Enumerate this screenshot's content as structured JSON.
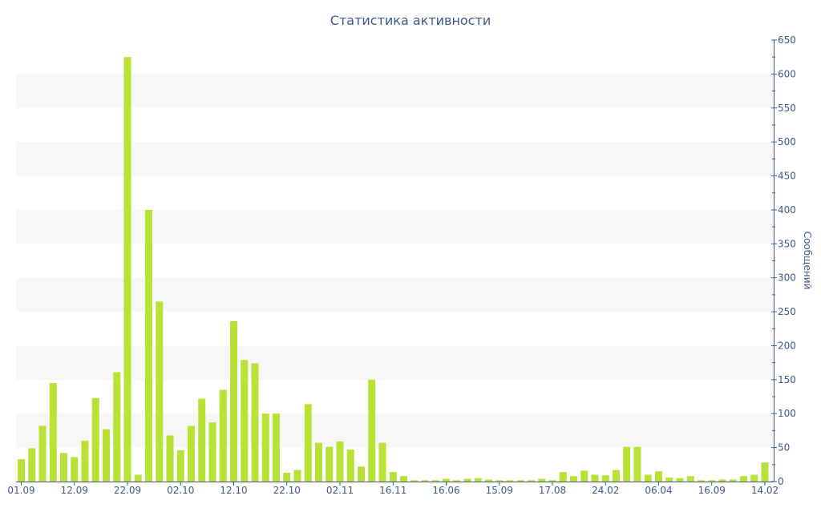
{
  "chart_data": {
    "type": "bar",
    "title": "Статистика активности",
    "ylabel": "Сообщений",
    "xlabel": "",
    "ylim": [
      0,
      650
    ],
    "y_ticks": [
      0,
      50,
      100,
      150,
      200,
      250,
      300,
      350,
      400,
      450,
      500,
      550,
      600,
      650
    ],
    "x_tick_labels": [
      {
        "label": "01.09",
        "index": 0
      },
      {
        "label": "12.09",
        "index": 5
      },
      {
        "label": "22.09",
        "index": 10
      },
      {
        "label": "02.10",
        "index": 15
      },
      {
        "label": "12.10",
        "index": 20
      },
      {
        "label": "22.10",
        "index": 25
      },
      {
        "label": "02.11",
        "index": 30
      },
      {
        "label": "16.11",
        "index": 35
      },
      {
        "label": "16.06",
        "index": 40
      },
      {
        "label": "15.09",
        "index": 45
      },
      {
        "label": "17.08",
        "index": 50
      },
      {
        "label": "24.02",
        "index": 55
      },
      {
        "label": "06.04",
        "index": 60
      },
      {
        "label": "16.09",
        "index": 65
      },
      {
        "label": "14.02",
        "index": 70
      }
    ],
    "values": [
      33,
      49,
      82,
      145,
      42,
      36,
      60,
      123,
      77,
      161,
      625,
      10,
      400,
      265,
      68,
      46,
      82,
      122,
      87,
      135,
      236,
      179,
      174,
      100,
      100,
      13,
      17,
      114,
      57,
      51,
      59,
      47,
      22,
      150,
      57,
      14,
      8,
      2,
      2,
      2,
      4,
      2,
      4,
      5,
      3,
      2,
      2,
      2,
      2,
      4,
      2,
      14,
      8,
      16,
      10,
      9,
      17,
      51,
      51,
      10,
      15,
      6,
      5,
      8,
      2,
      2,
      3,
      3,
      8,
      10,
      28
    ],
    "colors": {
      "bar": "#b8e234",
      "text": "#3c5a8a",
      "axis": "#3c5a8a",
      "band": "#f7f7f7"
    },
    "grid": "alternating horizontal bands",
    "y_axis_position": "right"
  }
}
